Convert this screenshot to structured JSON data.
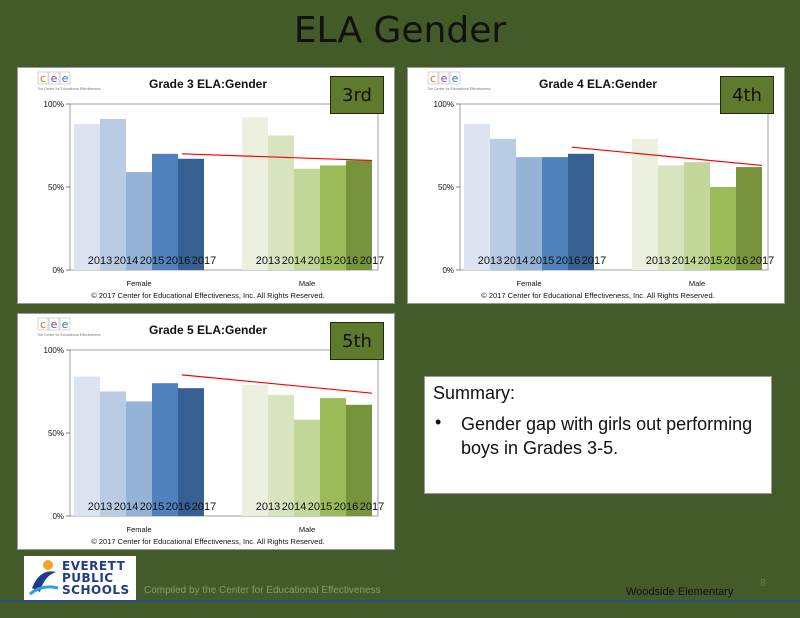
{
  "page": {
    "title": "ELA Gender",
    "school": "Woodside Elementary",
    "compiled_by": "Compiled by the Center for Educational Effectiveness",
    "page_number": "8",
    "logo_lines": [
      "EVERETT",
      "PUBLIC",
      "SCHOOLS"
    ]
  },
  "summary": {
    "heading": "Summary:",
    "bullet": "•",
    "text": "Gender gap with girls out performing boys in Grades 3-5."
  },
  "brand": {
    "cee_letters": [
      "c",
      "e",
      "e"
    ],
    "tagline": "The Center for Educational Effectiveness"
  },
  "colors": {
    "female": [
      "#dbe4f0",
      "#b9cce4",
      "#95b3d7",
      "#4f81bd",
      "#366092"
    ],
    "male": [
      "#ebf1de",
      "#d7e4bd",
      "#c4d79b",
      "#9bbb59",
      "#77933c"
    ],
    "trend": "#ff0000",
    "tag_bg": "#5e7a2c"
  },
  "chart_data": [
    {
      "type": "bar",
      "title": "Grade 3 ELA:Gender",
      "grade_tag": "3rd",
      "groups": [
        "Female",
        "Male"
      ],
      "categories": [
        "2013",
        "2014",
        "2015",
        "2016",
        "2017"
      ],
      "series": [
        {
          "name": "Female",
          "values": [
            88,
            91,
            59,
            70,
            67
          ]
        },
        {
          "name": "Male",
          "values": [
            92,
            81,
            61,
            63,
            66
          ]
        }
      ],
      "trend": [
        70,
        66
      ],
      "yticks": [
        "0%",
        "50%",
        "100%"
      ],
      "ylim": [
        0,
        100
      ],
      "copyright": "© 2017 Center for Educational Effectiveness, Inc. All Rights Reserved."
    },
    {
      "type": "bar",
      "title": "Grade 4 ELA:Gender",
      "grade_tag": "4th",
      "groups": [
        "Female",
        "Male"
      ],
      "categories": [
        "2013",
        "2014",
        "2015",
        "2016",
        "2017"
      ],
      "series": [
        {
          "name": "Female",
          "values": [
            88,
            79,
            68,
            68,
            70
          ]
        },
        {
          "name": "Male",
          "values": [
            79,
            63,
            65,
            50,
            62
          ]
        }
      ],
      "trend": [
        74,
        63
      ],
      "yticks": [
        "0%",
        "50%",
        "100%"
      ],
      "ylim": [
        0,
        100
      ],
      "copyright": "© 2017 Center for Educational Effectiveness, Inc. All Rights Reserved."
    },
    {
      "type": "bar",
      "title": "Grade 5 ELA:Gender",
      "grade_tag": "5th",
      "groups": [
        "Female",
        "Male"
      ],
      "categories": [
        "2013",
        "2014",
        "2015",
        "2016",
        "2017"
      ],
      "series": [
        {
          "name": "Female",
          "values": [
            84,
            75,
            69,
            80,
            77
          ]
        },
        {
          "name": "Male",
          "values": [
            79,
            73,
            58,
            71,
            67
          ]
        }
      ],
      "trend": [
        85,
        74
      ],
      "yticks": [
        "0%",
        "50%",
        "100%"
      ],
      "ylim": [
        0,
        100
      ],
      "copyright": "© 2017 Center for Educational Effectiveness, Inc. All Rights Reserved."
    }
  ]
}
